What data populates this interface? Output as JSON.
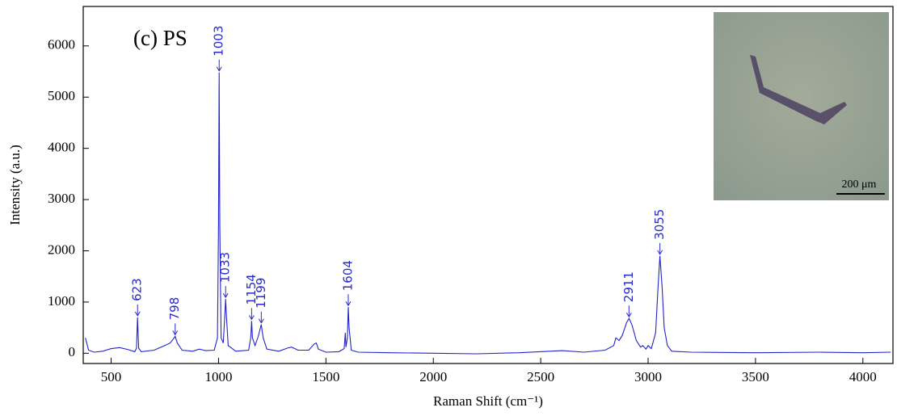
{
  "chart_data": {
    "type": "line",
    "title": "(c) PS",
    "x_label": "Raman Shift (cm⁻¹)",
    "y_label": "Intensity (a.u.)",
    "color": "#2222cc",
    "annotation_color": "#2a2acc",
    "xlim": [
      370,
      4140
    ],
    "ylim": [
      -200,
      6770
    ],
    "xticks": [
      500,
      1000,
      1500,
      2000,
      2500,
      3000,
      3500,
      4000
    ],
    "yticks": [
      0,
      1000,
      2000,
      3000,
      4000,
      5000,
      6000
    ],
    "x": [
      380,
      395,
      420,
      460,
      500,
      540,
      580,
      610,
      618,
      623,
      628,
      640,
      700,
      750,
      775,
      790,
      798,
      808,
      830,
      880,
      910,
      940,
      980,
      995,
      1000,
      1003,
      1006,
      1012,
      1022,
      1030,
      1033,
      1037,
      1045,
      1080,
      1140,
      1150,
      1154,
      1158,
      1170,
      1185,
      1199,
      1208,
      1225,
      1280,
      1320,
      1340,
      1370,
      1420,
      1445,
      1455,
      1465,
      1500,
      1560,
      1585,
      1590,
      1593,
      1600,
      1604,
      1608,
      1618,
      1650,
      1800,
      2000,
      2200,
      2400,
      2600,
      2700,
      2800,
      2840,
      2850,
      2865,
      2880,
      2900,
      2911,
      2925,
      2945,
      2965,
      2975,
      2990,
      3000,
      3015,
      3035,
      3045,
      3055,
      3065,
      3075,
      3090,
      3110,
      3200,
      3500,
      3800,
      4000,
      4130
    ],
    "values": [
      300,
      60,
      20,
      40,
      90,
      110,
      70,
      30,
      100,
      700,
      100,
      30,
      60,
      150,
      200,
      280,
      330,
      200,
      60,
      40,
      80,
      50,
      60,
      300,
      2500,
      5480,
      2500,
      300,
      200,
      800,
      1060,
      700,
      150,
      40,
      60,
      300,
      630,
      300,
      150,
      330,
      560,
      300,
      80,
      40,
      100,
      120,
      60,
      60,
      180,
      200,
      80,
      20,
      30,
      90,
      400,
      120,
      300,
      900,
      500,
      60,
      20,
      10,
      0,
      -10,
      10,
      50,
      20,
      60,
      150,
      300,
      250,
      350,
      600,
      680,
      550,
      250,
      120,
      150,
      80,
      150,
      90,
      400,
      1200,
      1900,
      1300,
      500,
      150,
      40,
      20,
      10,
      20,
      10,
      20
    ],
    "annotations": [
      {
        "x": 623,
        "y": 700,
        "label": "623"
      },
      {
        "x": 798,
        "y": 330,
        "label": "798"
      },
      {
        "x": 1003,
        "y": 5480,
        "label": "1003"
      },
      {
        "x": 1033,
        "y": 1060,
        "label": "1033"
      },
      {
        "x": 1154,
        "y": 630,
        "label": "1154"
      },
      {
        "x": 1199,
        "y": 560,
        "label": "1199"
      },
      {
        "x": 1604,
        "y": 900,
        "label": "1604"
      },
      {
        "x": 2911,
        "y": 680,
        "label": "2911"
      },
      {
        "x": 3055,
        "y": 1900,
        "label": "3055"
      }
    ],
    "inset_scale_label": "200 μm"
  }
}
